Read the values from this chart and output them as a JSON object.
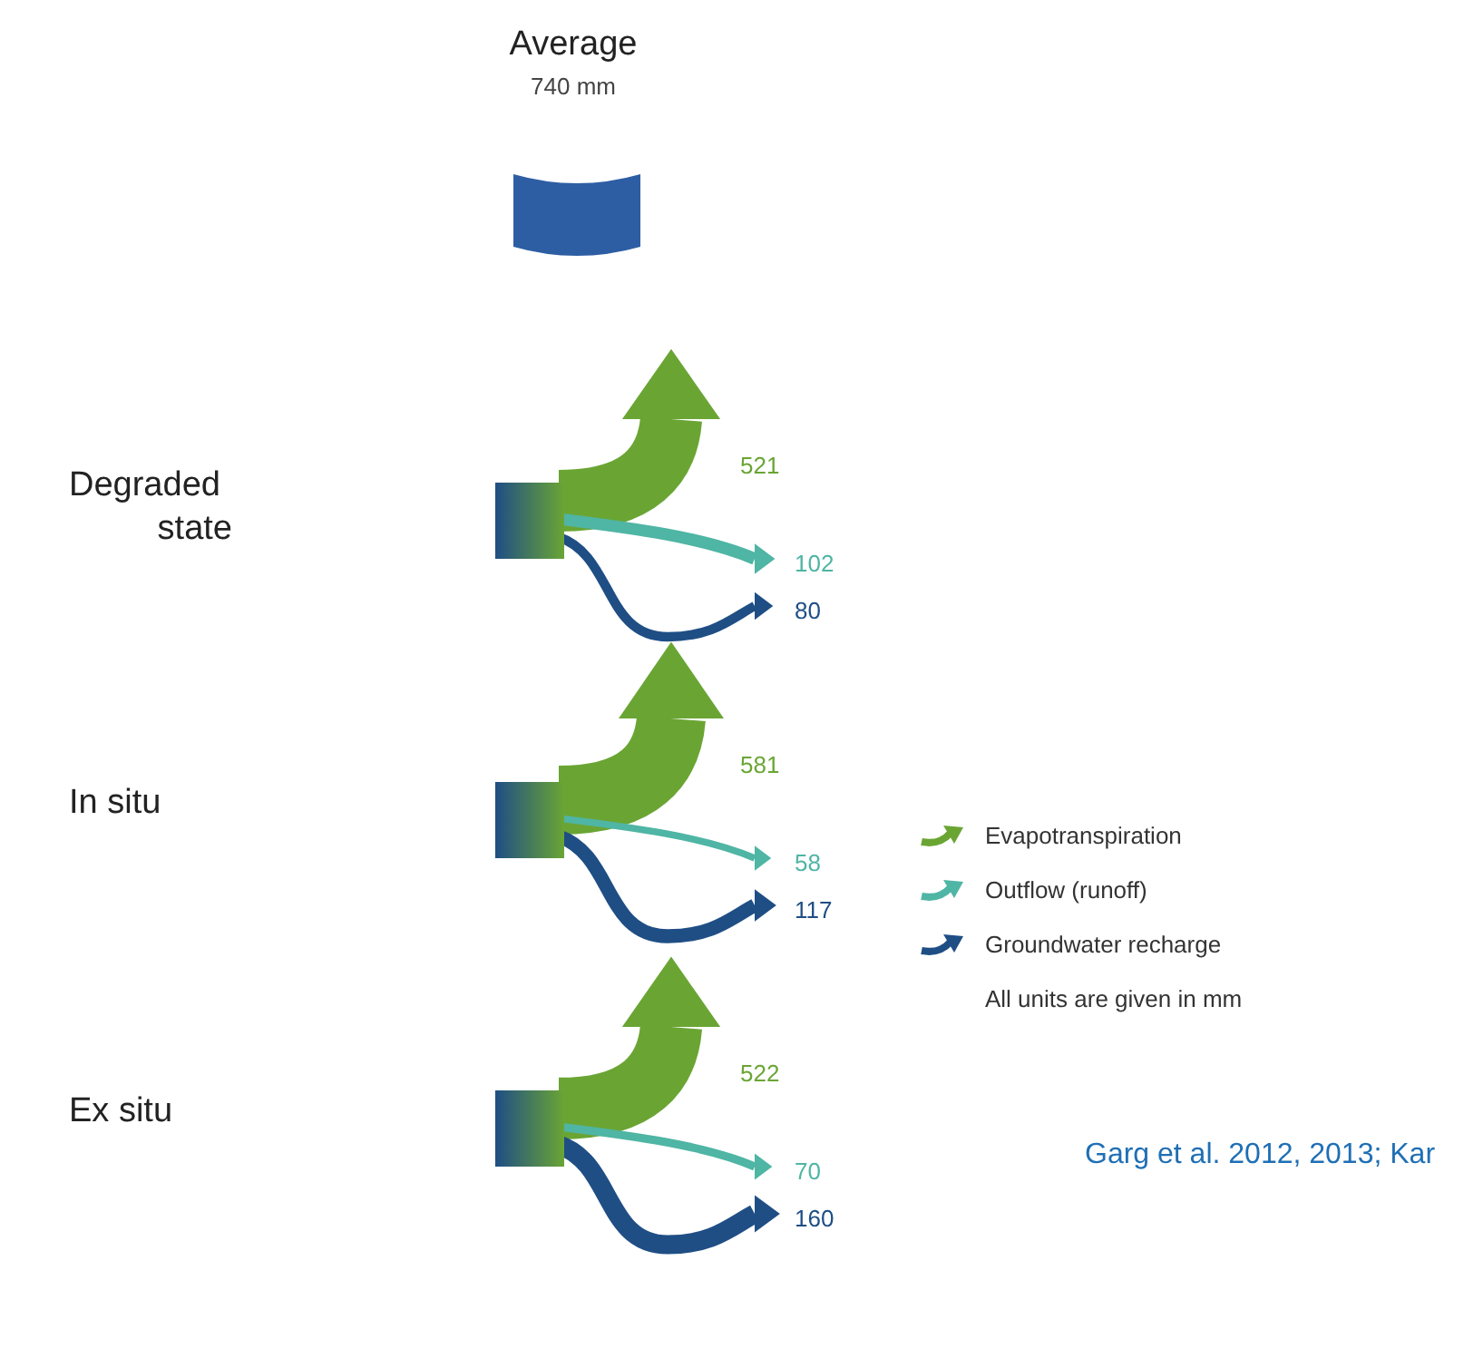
{
  "chart_data": {
    "type": "other",
    "title": "Average",
    "subtitle": "740 mm",
    "categories": [
      "Degraded\nstate",
      "In situ",
      "Ex situ"
    ],
    "series": [
      {
        "name": "Evapotranspiration",
        "color": "#6aa534",
        "values": [
          521,
          581,
          522
        ]
      },
      {
        "name": "Outflow (runoff)",
        "color": "#4fb5a4",
        "values": [
          102,
          58,
          70
        ]
      },
      {
        "name": "Groundwater recharge",
        "color": "#1f4e85",
        "values": [
          80,
          117,
          160
        ]
      }
    ],
    "data_labels": true,
    "legend": "right",
    "annotations": [
      "All units are given in mm",
      "Garg et al. 2012, 2013; Kar"
    ]
  }
}
